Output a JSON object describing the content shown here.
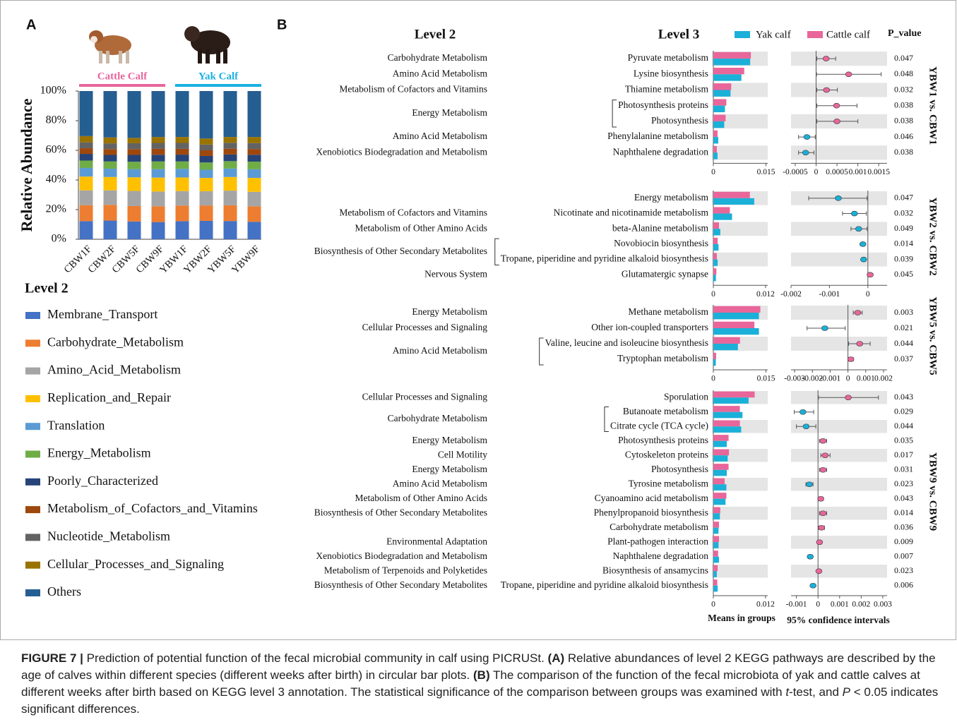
{
  "panel_labels": [
    "A",
    "B"
  ],
  "panel_b": {
    "level2_header": "Level 2",
    "level3_header": "Level 3",
    "p_header": "P_value",
    "means_axis": "Means in groups",
    "ci_axis": "95% confidence intervals",
    "legend": [
      {
        "name": "Yak calf",
        "color": "#1ab0d8"
      },
      {
        "name": "Cattle calf",
        "color": "#e8669a"
      }
    ]
  },
  "caption": [
    "FIGURE 7 |",
    " Prediction of potential function of the fecal microbial community in calf using PICRUSt. ",
    "(A)",
    " Relative abundances of level 2 KEGG pathways are described by the age of calves within different species (different weeks after birth) in circular bar plots. ",
    "(B)",
    " The comparison of the function of the fecal microbiota of yak and cattle calves at different weeks after birth based on KEGG level 3 annotation. The statistical significance of the comparison between groups was examined with ",
    "t",
    "-test, and ",
    "P",
    " < 0.05 indicates significant differences."
  ],
  "chart_data": [
    {
      "type": "stacked_bar",
      "ylabel": "Relative Abundance",
      "legend_title": "Level 2",
      "groups": [
        {
          "label": "Cattle Calf",
          "color": "#e8669a"
        },
        {
          "label": "Yak Calf",
          "color": "#1ab0e0"
        }
      ],
      "categories": [
        "CBW1F",
        "CBW2F",
        "CBW5F",
        "CBW9F",
        "YBW1F",
        "YBW2F",
        "YBW5F",
        "YBW9F"
      ],
      "ylim": [
        0,
        100
      ],
      "yticks": [
        {
          "value": 0,
          "label": "0%"
        },
        {
          "value": 20,
          "label": "20%"
        },
        {
          "value": 40,
          "label": "40%"
        },
        {
          "value": 60,
          "label": "60%"
        },
        {
          "value": 80,
          "label": "80%"
        },
        {
          "value": 100,
          "label": "100%"
        }
      ],
      "series": [
        {
          "name": "Membrane_Transport",
          "color": "#4472c4",
          "values": [
            12.2,
            12.6,
            12.0,
            11.6,
            12.2,
            12.4,
            12.3,
            11.8
          ]
        },
        {
          "name": "Carbohydrate_Metabolism",
          "color": "#ed7d31",
          "values": [
            10.8,
            10.6,
            10.4,
            10.6,
            10.5,
            10.4,
            10.6,
            10.4
          ]
        },
        {
          "name": "Amino_Acid_Metabolism",
          "color": "#a5a5a5",
          "values": [
            10.0,
            9.8,
            10.2,
            10.0,
            9.8,
            9.6,
            9.9,
            9.8
          ]
        },
        {
          "name": "Replication_and_Repair",
          "color": "#ffc000",
          "values": [
            9.3,
            9.0,
            9.2,
            9.4,
            9.2,
            9.0,
            9.2,
            9.4
          ]
        },
        {
          "name": "Translation",
          "color": "#5b9bd5",
          "values": [
            5.8,
            5.6,
            5.5,
            5.7,
            5.8,
            5.5,
            5.7,
            5.8
          ]
        },
        {
          "name": "Energy_Metabolism",
          "color": "#70ad47",
          "values": [
            5.0,
            4.9,
            5.0,
            5.2,
            5.0,
            4.9,
            5.0,
            5.2
          ]
        },
        {
          "name": "Poorly_Characterized",
          "color": "#264478",
          "values": [
            4.5,
            4.4,
            4.6,
            4.5,
            4.6,
            4.4,
            4.5,
            4.6
          ]
        },
        {
          "name": "Metabolism_of_Cofactors_and_Vitamins",
          "color": "#9e480e",
          "values": [
            3.8,
            3.9,
            3.9,
            4.0,
            3.9,
            3.8,
            3.9,
            3.9
          ]
        },
        {
          "name": "Nucleotide_Metabolism",
          "color": "#636363",
          "values": [
            4.0,
            3.9,
            4.0,
            4.0,
            4.0,
            3.9,
            4.0,
            4.0
          ]
        },
        {
          "name": "Cellular_Processes_and_Signaling",
          "color": "#997300",
          "values": [
            4.2,
            4.0,
            3.6,
            4.0,
            4.0,
            4.1,
            3.9,
            4.1
          ]
        },
        {
          "name": "Others",
          "color": "#255e91",
          "values": [
            30.4,
            31.3,
            31.6,
            31.0,
            31.0,
            32.0,
            31.0,
            31.0
          ]
        }
      ]
    },
    {
      "type": "extended_error_bar",
      "title": "YBW1 vs. CBW1",
      "categories": [
        "Pyruvate metabolism",
        "Lysine biosynthesis",
        "Thiamine metabolism",
        "Photosynthesis proteins",
        "Photosynthesis",
        "Phenylalanine metabolism",
        "Naphthalene degradation"
      ],
      "level2": [
        "Carbohydrate Metabolism",
        "Amino Acid Metabolism",
        "Metabolism of Cofactors and Vitamins",
        "Energy Metabolism",
        null,
        "Amino Acid Metabolism",
        "Xenobiotics Biodegradation and Metabolism"
      ],
      "bracket_rows": [
        3,
        4
      ],
      "series": [
        {
          "values": [
            0.0105,
            0.008,
            0.0049,
            0.0033,
            0.0031,
            0.0014,
            0.0012
          ]
        },
        {
          "values": [
            0.0107,
            0.0088,
            0.0051,
            0.0037,
            0.0035,
            0.0012,
            0.001
          ]
        }
      ],
      "xlim": [
        0,
        0.0155
      ],
      "xticks": [
        0,
        0.015
      ],
      "diff": {
        "values": [
          0.00024,
          0.00078,
          0.00025,
          0.00049,
          0.0005,
          -0.00022,
          -0.00025
        ],
        "ci_low": [
          2e-05,
          1e-05,
          2e-05,
          2e-05,
          2e-05,
          -0.00042,
          -0.00042
        ],
        "ci_high": [
          0.00047,
          0.00156,
          0.00051,
          0.00098,
          0.001,
          -2e-05,
          -5e-05
        ]
      },
      "diff_xlim": [
        -0.0006,
        0.0017
      ],
      "diff_xticks": [
        -0.0005,
        0,
        0.0005,
        0.001,
        0.0015
      ],
      "p_values": [
        0.047,
        0.048,
        0.032,
        0.038,
        0.038,
        0.046,
        0.038
      ]
    },
    {
      "type": "extended_error_bar",
      "title": "YBW2 vs. CBW2",
      "categories": [
        "Energy metabolism",
        "Nicotinate and nicotinamide metabolism",
        "beta-Alanine metabolism",
        "Novobiocin biosynthesis",
        "Tropane, piperidine and pyridine alkaloid biosynthesis",
        "Glutamatergic synapse"
      ],
      "level2": [
        null,
        "Metabolism of Cofactors and Vitamins",
        "Metabolism of Other Amino Acids",
        "Biosynthesis of Other Secondary Metabolites",
        null,
        "Nervous System"
      ],
      "bracket_rows": [
        3,
        4
      ],
      "series": [
        {
          "values": [
            0.0094,
            0.0043,
            0.0016,
            0.0012,
            0.001,
            0.0006
          ]
        },
        {
          "values": [
            0.0084,
            0.0038,
            0.0013,
            0.001,
            0.0008,
            0.0007
          ]
        }
      ],
      "xlim": [
        0,
        0.0125
      ],
      "xticks": [
        0,
        0.012
      ],
      "diff": {
        "values": [
          -0.00077,
          -0.00035,
          -0.00024,
          -0.00013,
          -0.00011,
          6e-05
        ],
        "ci_low": [
          -0.00154,
          -0.00066,
          -0.00044,
          -0.00018,
          -0.00016,
          1e-05
        ],
        "ci_high": [
          -2e-05,
          -4e-05,
          -2e-05,
          -8e-05,
          -6e-05,
          0.00011
        ]
      },
      "diff_xlim": [
        -0.002,
        0.0005
      ],
      "diff_xticks": [
        -0.002,
        -0.001,
        0
      ],
      "p_values": [
        0.047,
        0.032,
        0.049,
        0.014,
        0.039,
        0.045
      ]
    },
    {
      "type": "extended_error_bar",
      "title": "YBW5 vs. CBW5",
      "categories": [
        "Methane metabolism",
        "Other ion-coupled transporters",
        "Valine, leucine and isoleucine biosynthesis",
        "Tryptophan metabolism"
      ],
      "level2": [
        "Energy Metabolism",
        "Cellular Processes and Signaling",
        "Amino Acid Metabolism",
        null
      ],
      "bracket_rows": [
        2,
        3
      ],
      "series": [
        {
          "values": [
            0.013,
            0.013,
            0.007,
            0.0007
          ]
        },
        {
          "values": [
            0.0134,
            0.0117,
            0.0076,
            0.0008
          ]
        }
      ],
      "xlim": [
        0,
        0.0155
      ],
      "xticks": [
        0,
        0.015
      ],
      "diff": {
        "values": [
          0.00055,
          -0.0013,
          0.00066,
          0.00016
        ],
        "ci_low": [
          0.0003,
          -0.0023,
          4e-05,
          1e-05
        ],
        "ci_high": [
          0.0008,
          -0.00015,
          0.00125,
          0.0003
        ]
      },
      "diff_xlim": [
        -0.0032,
        0.0022
      ],
      "diff_xticks": [
        -0.003,
        -0.002,
        -0.001,
        0,
        0.001,
        0.002
      ],
      "p_values": [
        0.003,
        0.021,
        0.044,
        0.037
      ]
    },
    {
      "type": "extended_error_bar",
      "title": "YBW9 vs. CBW9",
      "categories": [
        "Sporulation",
        "Butanoate metabolism",
        "Citrate cycle (TCA cycle)",
        "Photosynthesis proteins",
        "Cytoskeleton proteins",
        "Photosynthesis",
        "Tyrosine metabolism",
        "Cyanoamino acid metabolism",
        "Phenylpropanoid biosynthesis",
        "Carbohydrate metabolism",
        "Plant-pathogen interaction",
        "Naphthalene degradation",
        "Biosynthesis of ansamycins",
        "Tropane, piperidine and pyridine alkaloid biosynthesis"
      ],
      "level2": [
        "Cellular Processes and Signaling",
        "Carbohydrate Metabolism",
        null,
        "Energy Metabolism",
        "Cell Motility",
        "Energy Metabolism",
        "Amino Acid Metabolism",
        "Metabolism of Other Amino Acids",
        "Biosynthesis of Other Secondary Metabolites",
        null,
        "Environmental Adaptation",
        "Xenobiotics Biodegradation and Metabolism",
        "Metabolism of Terpenoids and Polyketides",
        "Biosynthesis of Other Secondary Metabolites"
      ],
      "bracket_rows": [
        1,
        2
      ],
      "series": [
        {
          "values": [
            0.0081,
            0.0067,
            0.0064,
            0.0031,
            0.0033,
            0.0031,
            0.003,
            0.0028,
            0.0015,
            0.0012,
            0.0012,
            0.0013,
            0.0008,
            0.001
          ]
        },
        {
          "values": [
            0.0095,
            0.0061,
            0.0061,
            0.0035,
            0.0036,
            0.0035,
            0.0026,
            0.003,
            0.0016,
            0.0013,
            0.0013,
            0.0011,
            0.001,
            0.0009
          ]
        }
      ],
      "xlim": [
        0,
        0.0125
      ],
      "xticks": [
        0,
        0.012
      ],
      "diff": {
        "values": [
          0.0014,
          -0.0007,
          -0.00055,
          0.00023,
          0.00033,
          0.00023,
          -0.0004,
          0.00013,
          0.00023,
          0.00016,
          7e-05,
          -0.00036,
          4e-05,
          -0.00023
        ],
        "ci_low": [
          2e-05,
          -0.0011,
          -0.001,
          7e-05,
          0.00013,
          7e-05,
          -0.00056,
          3e-05,
          7e-05,
          3e-05,
          2e-05,
          -0.00046,
          1e-05,
          -0.00028
        ],
        "ci_high": [
          0.0028,
          -0.0002,
          -0.0001,
          0.0004,
          0.00056,
          0.0004,
          -0.00023,
          0.00023,
          0.0004,
          0.0003,
          0.00012,
          -0.00026,
          7e-05,
          -0.00018
        ]
      },
      "diff_xlim": [
        -0.00125,
        0.0032
      ],
      "diff_xticks": [
        -0.001,
        0,
        0.001,
        0.002,
        0.003
      ],
      "p_values": [
        0.043,
        0.029,
        0.044,
        0.035,
        0.017,
        0.031,
        0.023,
        0.043,
        0.014,
        0.036,
        0.009,
        0.007,
        0.023,
        0.006
      ]
    }
  ]
}
